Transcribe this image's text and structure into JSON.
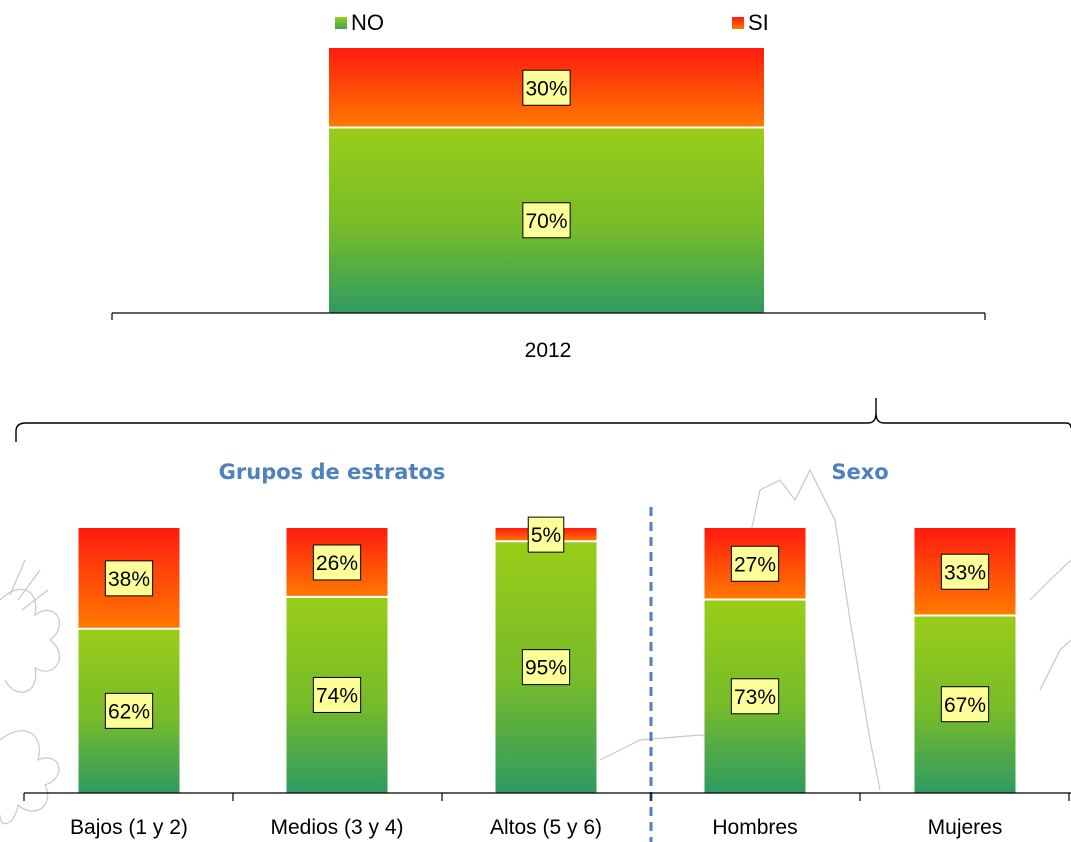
{
  "chart_data": [
    {
      "type": "bar",
      "stacked": true,
      "categories": [
        "2012"
      ],
      "series": [
        {
          "name": "NO",
          "values": [
            70
          ]
        },
        {
          "name": "SI",
          "values": [
            30
          ]
        }
      ],
      "data_labels": [
        "70%",
        "30%"
      ],
      "ylim": [
        0,
        100
      ],
      "legend": "top",
      "grid": false
    },
    {
      "type": "bar",
      "stacked": true,
      "groups": [
        {
          "label": "Grupos de estratos",
          "categories": [
            "Bajos (1 y 2)",
            "Medios (3 y 4)",
            "Altos (5 y 6)"
          ]
        },
        {
          "label": "Sexo",
          "categories": [
            "Hombres",
            "Mujeres"
          ]
        }
      ],
      "categories": [
        "Bajos (1 y 2)",
        "Medios (3 y 4)",
        "Altos (5 y 6)",
        "Hombres",
        "Mujeres"
      ],
      "series": [
        {
          "name": "NO",
          "values": [
            62,
            74,
            95,
            73,
            67
          ]
        },
        {
          "name": "SI",
          "values": [
            38,
            26,
            5,
            27,
            33
          ]
        }
      ],
      "ylim": [
        0,
        100
      ],
      "legend": "none",
      "grid": false
    }
  ],
  "legend": [
    {
      "name": "NO",
      "color": "#7cc242"
    },
    {
      "name": "SI",
      "color": "#ff3b12"
    }
  ],
  "colors": {
    "no_top": "#9acd18",
    "no_bottom": "#2e9a62",
    "si_top": "#ff1a10",
    "si_bottom": "#ff7a00",
    "label_fill": "#ffff99",
    "group_title": "#4f81bd",
    "divider": "#4f81bd"
  }
}
